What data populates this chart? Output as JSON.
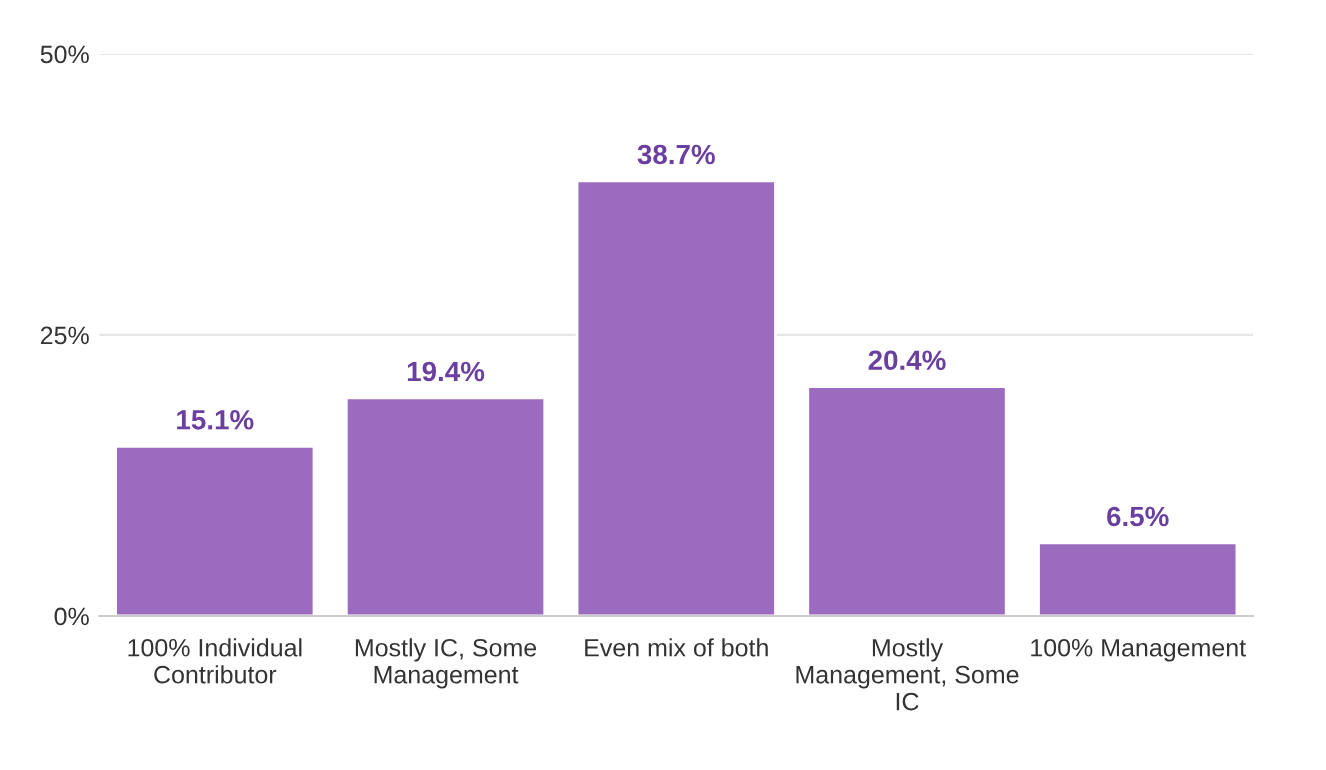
{
  "chart_data": {
    "type": "bar",
    "categories": [
      "100% Individual Contributor",
      "Mostly IC, Some Management",
      "Even mix of both",
      "Mostly Management, Some IC",
      "100% Management"
    ],
    "values": [
      15.1,
      19.4,
      38.7,
      20.4,
      6.5
    ],
    "value_labels": [
      "15.1%",
      "19.4%",
      "38.7%",
      "20.4%",
      "6.5%"
    ],
    "color": "#9b6bbf",
    "ylim": [
      0,
      50
    ],
    "yticks": [
      {
        "value": 0,
        "label": "0%"
      },
      {
        "value": 25,
        "label": "25%"
      },
      {
        "value": 50,
        "label": "50%"
      }
    ],
    "grid": "y"
  }
}
